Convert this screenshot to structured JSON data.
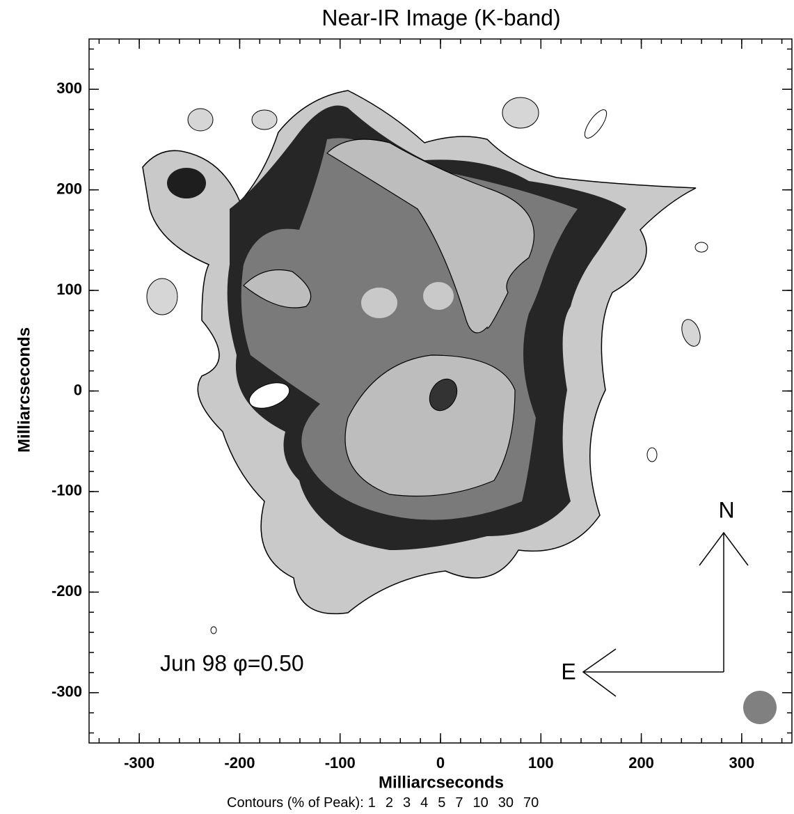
{
  "chart_data": {
    "type": "image",
    "title": "Near-IR Image (K-band)",
    "x_label": "Milliarcseconds",
    "y_label": "Milliarcseconds",
    "xlim": [
      -350,
      350
    ],
    "ylim": [
      -350,
      350
    ],
    "xticks": [
      -300,
      -200,
      -100,
      0,
      100,
      200,
      300
    ],
    "yticks": [
      -300,
      -200,
      -100,
      0,
      100,
      200,
      300
    ],
    "minor_tick_interval": 20,
    "annotation": "Jun 98  φ=0.50",
    "compass": {
      "north": "N",
      "east": "E"
    },
    "contour_label": "Contours (% of Peak):",
    "contour_levels": [
      1,
      2,
      3,
      4,
      5,
      7,
      10,
      30,
      70
    ]
  }
}
